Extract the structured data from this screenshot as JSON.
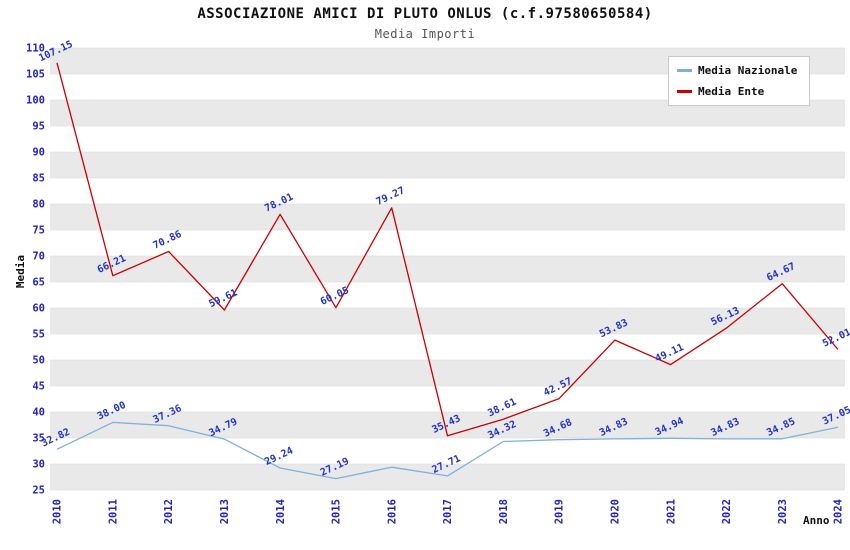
{
  "header": {
    "title": "ASSOCIAZIONE AMICI DI PLUTO ONLUS (c.f.97580650584)",
    "subtitle": "Media Importi"
  },
  "chart_data": {
    "type": "line",
    "title": "ASSOCIAZIONE AMICI DI PLUTO ONLUS (c.f.97580650584)",
    "subtitle": "Media Importi",
    "xlabel": "Anno",
    "ylabel": "Media",
    "ylim": [
      25,
      110
    ],
    "ytick_step": 5,
    "grid": "horizontal-bands",
    "legend_position": "top-right",
    "x": [
      "2010",
      "2011",
      "2012",
      "2013",
      "2014",
      "2015",
      "2016",
      "2017",
      "2018",
      "2019",
      "2020",
      "2021",
      "2022",
      "2023",
      "2024"
    ],
    "series": [
      {
        "name": "Media Nazionale",
        "color": "#7fb1d9",
        "values": [
          32.82,
          38.0,
          37.36,
          34.79,
          29.24,
          27.19,
          29.38,
          27.71,
          34.32,
          34.68,
          34.83,
          34.94,
          34.83,
          34.85,
          37.05
        ],
        "labels": [
          "32.82",
          "38.00",
          "37.36",
          "34.79",
          "29.24",
          "27.19",
          "",
          "27.71",
          "34.32",
          "34.68",
          "34.83",
          "34.94",
          "34.83",
          "34.85",
          "37.05"
        ]
      },
      {
        "name": "Media Ente",
        "color": "#cc0000",
        "values": [
          107.15,
          66.21,
          70.86,
          59.61,
          78.01,
          60.05,
          79.27,
          35.43,
          38.61,
          42.57,
          53.83,
          49.11,
          56.13,
          64.67,
          52.01
        ],
        "labels": [
          "107.15",
          "66.21",
          "70.86",
          "59.61",
          "78.01",
          "60.05",
          "79.27",
          "35.43",
          "38.61",
          "42.57",
          "53.83",
          "49.11",
          "56.13",
          "64.67",
          "52.01"
        ]
      }
    ],
    "colors": {
      "band": "#e9e9e9",
      "grid": "#d9d9d9",
      "axis_tick_label": "#2222cc",
      "point_label": "#2233cc"
    }
  }
}
